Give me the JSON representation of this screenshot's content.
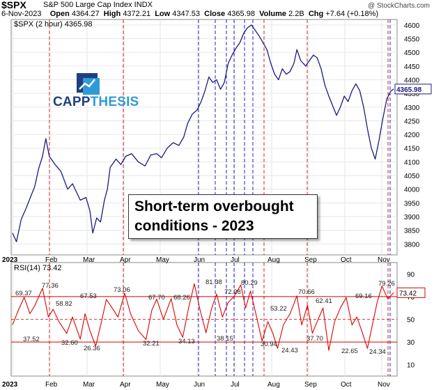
{
  "header": {
    "symbol": "$SPX",
    "description": "S&P 500 Large Cap Index  INDX",
    "watermark": "@ StockCharts.com",
    "date": "6-Nov-2023",
    "open_label": "Open",
    "open": "4364.27",
    "high_label": "High",
    "high": "4372.21",
    "low_label": "Low",
    "low": "4347.53",
    "close_label": "Close",
    "close": "4365.98",
    "volume_label": "Volume",
    "volume": "2.2B",
    "chg_label": "Chg",
    "chg": "+7.64 (+0.18%)"
  },
  "logo": {
    "part1": "CAPP",
    "part2": "THESIS"
  },
  "callout": {
    "line1": "Short-term overbought",
    "line2": "conditions - 2023"
  },
  "colors": {
    "price": "#1a1a80",
    "rsi": "#e00000",
    "red_marker": "#d02020",
    "blue_marker": "#2020c0"
  },
  "chart_data": [
    {
      "type": "line",
      "legend": "$SPX (2 hour) 4365.98",
      "ylim": [
        3760,
        4620
      ],
      "yticks": [
        3800,
        3850,
        3900,
        3950,
        4000,
        4050,
        4100,
        4150,
        4200,
        4250,
        4300,
        4350,
        4400,
        4450,
        4500,
        4550,
        4600
      ],
      "last_value": "4365.98",
      "x_labels": [
        "2023",
        "Feb",
        "Mar",
        "Apr",
        "May",
        "Jun",
        "Jul",
        "Aug",
        "Sep",
        "Oct",
        "Nov"
      ],
      "series": [
        {
          "values": [
            [
              0,
              3840
            ],
            [
              0.2,
              3808
            ],
            [
              0.45,
              3890
            ],
            [
              0.7,
              3930
            ],
            [
              0.95,
              3975
            ],
            [
              1.15,
              4010
            ],
            [
              1.35,
              4075
            ],
            [
              1.55,
              4120
            ],
            [
              1.72,
              4185
            ],
            [
              1.9,
              4120
            ],
            [
              2.2,
              4090
            ],
            [
              2.5,
              4065
            ],
            [
              2.85,
              4000
            ],
            [
              3.1,
              4020
            ],
            [
              3.5,
              3960
            ],
            [
              3.8,
              3970
            ],
            [
              4.0,
              3920
            ],
            [
              4.15,
              3840
            ],
            [
              4.35,
              3895
            ],
            [
              4.55,
              3880
            ],
            [
              4.75,
              3960
            ],
            [
              4.9,
              4000
            ],
            [
              5.05,
              4080
            ],
            [
              5.35,
              4110
            ],
            [
              5.6,
              4090
            ],
            [
              5.85,
              4120
            ],
            [
              6.15,
              4130
            ],
            [
              6.5,
              4100
            ],
            [
              6.85,
              4085
            ],
            [
              7.15,
              4125
            ],
            [
              7.45,
              4130
            ],
            [
              7.7,
              4115
            ],
            [
              8.0,
              4150
            ],
            [
              8.3,
              4170
            ],
            [
              8.6,
              4160
            ],
            [
              8.85,
              4190
            ],
            [
              9.05,
              4240
            ],
            [
              9.3,
              4275
            ],
            [
              9.55,
              4290
            ],
            [
              9.75,
              4320
            ],
            [
              9.95,
              4360
            ],
            [
              10.15,
              4410
            ],
            [
              10.35,
              4390
            ],
            [
              10.55,
              4400
            ],
            [
              10.75,
              4365
            ],
            [
              10.95,
              4390
            ],
            [
              11.15,
              4460
            ],
            [
              11.35,
              4490
            ],
            [
              11.55,
              4515
            ],
            [
              11.75,
              4535
            ],
            [
              11.95,
              4570
            ],
            [
              12.15,
              4590
            ],
            [
              12.35,
              4600
            ],
            [
              12.55,
              4580
            ],
            [
              12.75,
              4560
            ],
            [
              12.95,
              4535
            ],
            [
              13.15,
              4510
            ],
            [
              13.35,
              4460
            ],
            [
              13.55,
              4420
            ],
            [
              13.75,
              4400
            ],
            [
              13.95,
              4440
            ],
            [
              14.15,
              4420
            ],
            [
              14.35,
              4430
            ],
            [
              14.55,
              4460
            ],
            [
              14.7,
              4510
            ],
            [
              14.9,
              4470
            ],
            [
              15.15,
              4450
            ],
            [
              15.35,
              4470
            ],
            [
              15.55,
              4490
            ],
            [
              15.75,
              4480
            ],
            [
              15.95,
              4440
            ],
            [
              16.15,
              4380
            ],
            [
              16.35,
              4340
            ],
            [
              16.55,
              4305
            ],
            [
              16.75,
              4270
            ],
            [
              16.95,
              4300
            ],
            [
              17.15,
              4340
            ],
            [
              17.35,
              4320
            ],
            [
              17.55,
              4360
            ],
            [
              17.75,
              4385
            ],
            [
              17.95,
              4360
            ],
            [
              18.15,
              4300
            ],
            [
              18.35,
              4220
            ],
            [
              18.55,
              4150
            ],
            [
              18.75,
              4110
            ],
            [
              18.95,
              4180
            ],
            [
              19.15,
              4260
            ],
            [
              19.35,
              4330
            ],
            [
              19.55,
              4358
            ],
            [
              19.7,
              4366
            ]
          ]
        }
      ]
    },
    {
      "type": "line",
      "legend": "RSI(14) 73.42",
      "ylim": [
        0,
        100
      ],
      "yticks": [
        10,
        30,
        50,
        70,
        90
      ],
      "reference_lines": [
        30,
        50,
        70
      ],
      "last_value": "73.42",
      "labels": [
        "69.37",
        "77.36",
        "58.82",
        "67.53",
        "73.06",
        "67.70",
        "68.26",
        "81.38",
        "72.28",
        "80.29",
        "70.66",
        "62.41",
        "69.16",
        "79.26",
        "37.52",
        "32.60",
        "26.36",
        "32.21",
        "34.13",
        "38.15",
        "53.22",
        "30.94",
        "24.43",
        "37.70",
        "22.65",
        "24.34"
      ],
      "x_labels": [
        "2023",
        "Feb",
        "Mar",
        "Apr",
        "May",
        "Jun",
        "Jul",
        "Aug",
        "Sep",
        "Oct",
        "Nov"
      ],
      "series": [
        {
          "values": [
            [
              0,
              45
            ],
            [
              0.3,
              58
            ],
            [
              0.6,
              69.37
            ],
            [
              0.9,
              55
            ],
            [
              1.15,
              62
            ],
            [
              1.55,
              77.36
            ],
            [
              1.85,
              52
            ],
            [
              2.1,
              58.82
            ],
            [
              2.4,
              48
            ],
            [
              2.8,
              37.52
            ],
            [
              3.1,
              52
            ],
            [
              3.5,
              32.6
            ],
            [
              3.75,
              55
            ],
            [
              4.0,
              40
            ],
            [
              4.3,
              26.36
            ],
            [
              4.6,
              48
            ],
            [
              4.85,
              67.53
            ],
            [
              5.15,
              60
            ],
            [
              5.45,
              52
            ],
            [
              5.8,
              73.06
            ],
            [
              6.1,
              55
            ],
            [
              6.5,
              40
            ],
            [
              6.9,
              32.21
            ],
            [
              7.2,
              58
            ],
            [
              7.45,
              67.7
            ],
            [
              7.8,
              50
            ],
            [
              8.2,
              68.26
            ],
            [
              8.5,
              45
            ],
            [
              8.8,
              34.13
            ],
            [
              9.1,
              60
            ],
            [
              9.4,
              81.38
            ],
            [
              9.7,
              58
            ],
            [
              10.0,
              38.15
            ],
            [
              10.3,
              60
            ],
            [
              10.55,
              72.28
            ],
            [
              10.85,
              52
            ],
            [
              11.15,
              65
            ],
            [
              11.45,
              70
            ],
            [
              11.8,
              80.29
            ],
            [
              12.05,
              60
            ],
            [
              12.3,
              75
            ],
            [
              12.6,
              53.22
            ],
            [
              12.9,
              30.94
            ],
            [
              13.2,
              48
            ],
            [
              13.45,
              38
            ],
            [
              13.7,
              24.43
            ],
            [
              14.0,
              45
            ],
            [
              14.35,
              55
            ],
            [
              14.7,
              70.66
            ],
            [
              14.95,
              45
            ],
            [
              15.25,
              62.41
            ],
            [
              15.5,
              37.7
            ],
            [
              15.75,
              48
            ],
            [
              16.05,
              60
            ],
            [
              16.35,
              22.65
            ],
            [
              16.65,
              48
            ],
            [
              16.95,
              60
            ],
            [
              17.25,
              69.16
            ],
            [
              17.55,
              45
            ],
            [
              17.8,
              52
            ],
            [
              18.05,
              40
            ],
            [
              18.35,
              24.34
            ],
            [
              18.6,
              45
            ],
            [
              18.85,
              65
            ],
            [
              19.1,
              79.26
            ],
            [
              19.4,
              68
            ],
            [
              19.7,
              73.42
            ]
          ]
        }
      ]
    }
  ]
}
